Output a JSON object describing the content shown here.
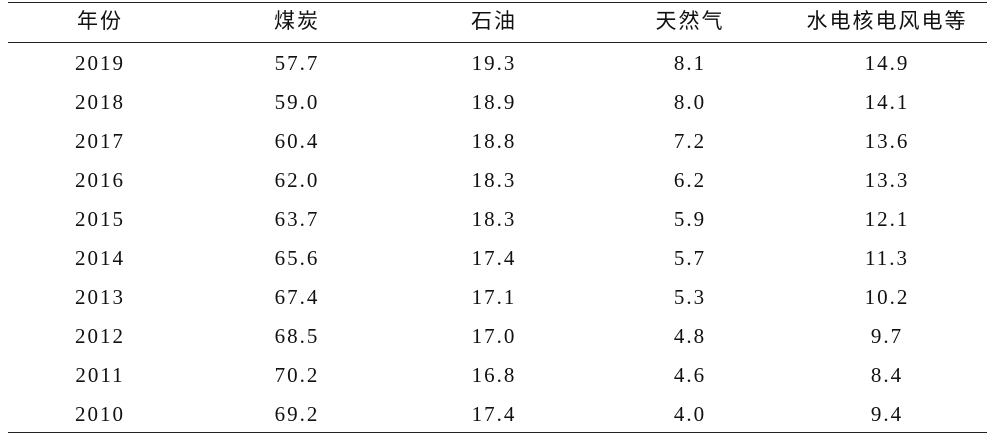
{
  "table": {
    "header": [
      "年份",
      "煤炭",
      "石油",
      "天然气",
      "水电核电风电等"
    ],
    "rows": [
      [
        "2019",
        "57.7",
        "19.3",
        "8.1",
        "14.9"
      ],
      [
        "2018",
        "59.0",
        "18.9",
        "8.0",
        "14.1"
      ],
      [
        "2017",
        "60.4",
        "18.8",
        "7.2",
        "13.6"
      ],
      [
        "2016",
        "62.0",
        "18.3",
        "6.2",
        "13.3"
      ],
      [
        "2015",
        "63.7",
        "18.3",
        "5.9",
        "12.1"
      ],
      [
        "2014",
        "65.6",
        "17.4",
        "5.7",
        "11.3"
      ],
      [
        "2013",
        "67.4",
        "17.1",
        "5.3",
        "10.2"
      ],
      [
        "2012",
        "68.5",
        "17.0",
        "4.8",
        "9.7"
      ],
      [
        "2011",
        "70.2",
        "16.8",
        "4.6",
        "8.4"
      ],
      [
        "2010",
        "69.2",
        "17.4",
        "4.0",
        "9.4"
      ]
    ]
  }
}
